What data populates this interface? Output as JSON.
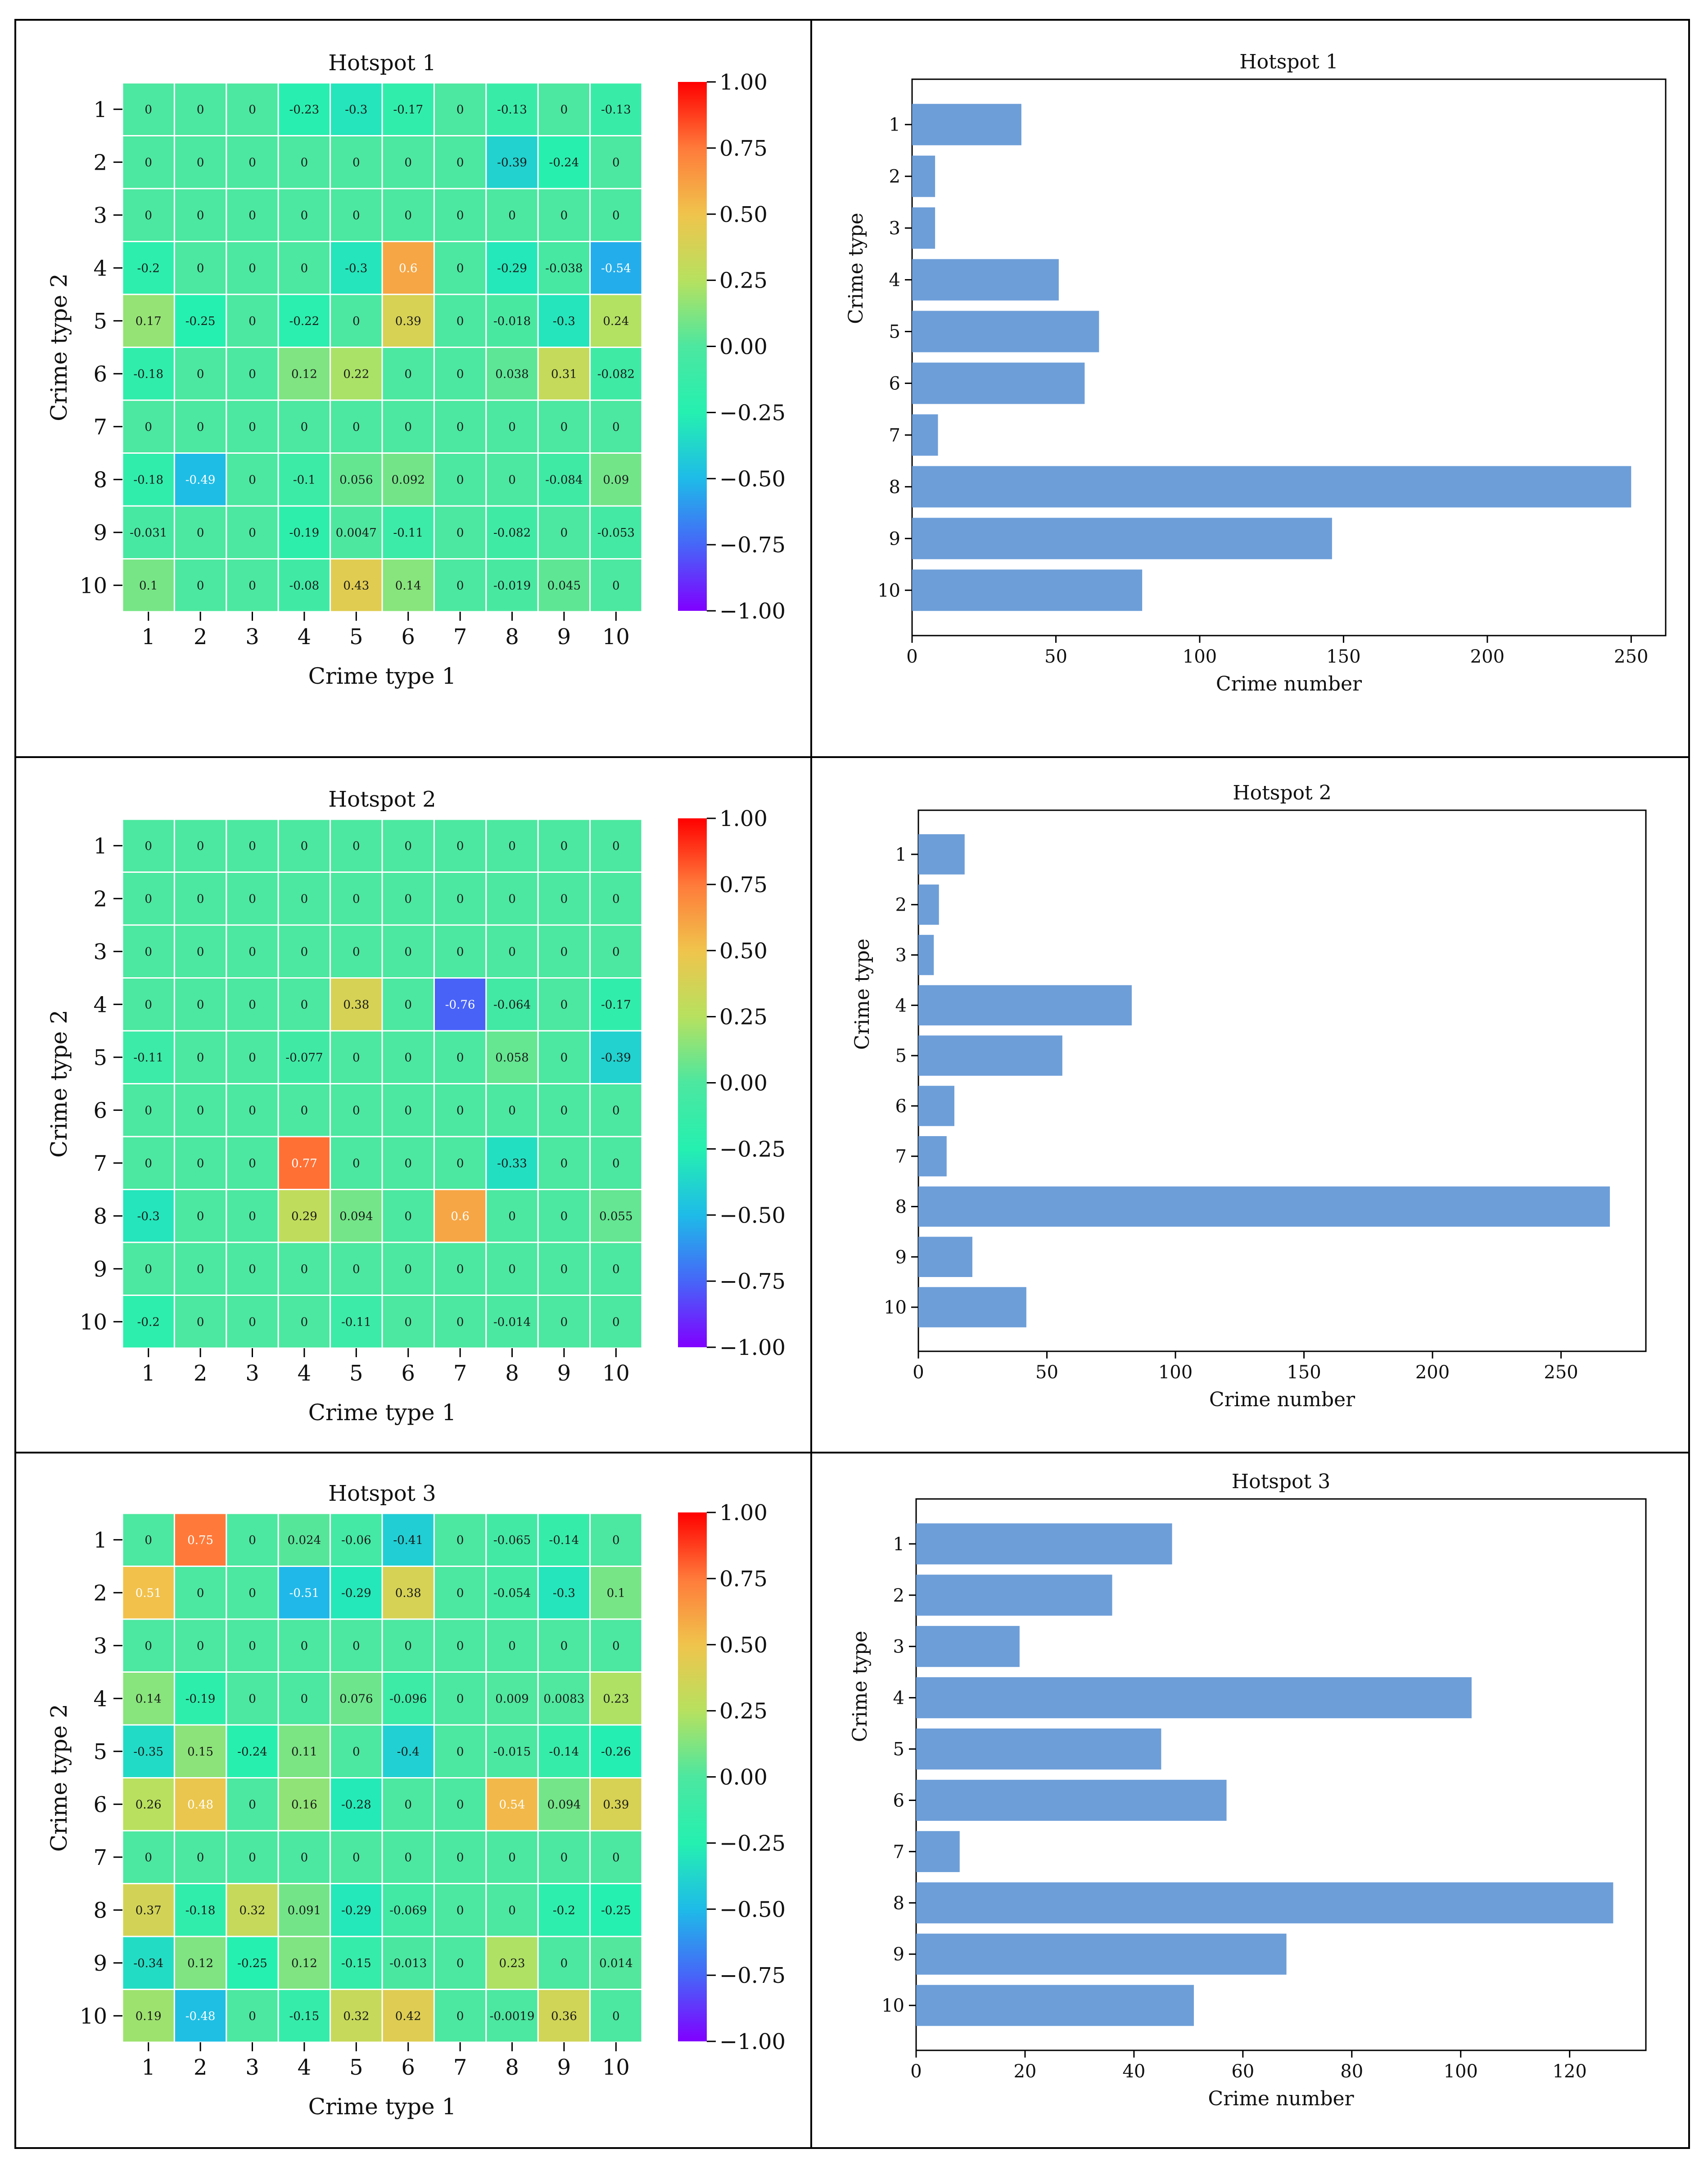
{
  "colors": {
    "bar": "#6d9ed8",
    "grid_line": "#ffffff",
    "frame": "#000000",
    "colorscale": [
      "#8000ff",
      "#4666f8",
      "#1ebbe8",
      "#25f0b0",
      "#4ce7a0",
      "#b7e15f",
      "#f0c44c",
      "#ff7a3a",
      "#ff0000"
    ]
  },
  "chart_data": [
    {
      "type": "heatmap",
      "title": "Hotspot 1",
      "xlabel": "Crime type 1",
      "ylabel": "Crime type 2",
      "x_ticks": [
        "1",
        "2",
        "3",
        "4",
        "5",
        "6",
        "7",
        "8",
        "9",
        "10"
      ],
      "y_ticks": [
        "1",
        "2",
        "3",
        "4",
        "5",
        "6",
        "7",
        "8",
        "9",
        "10"
      ],
      "value_range": [
        -1,
        1
      ],
      "colorbar_ticks": [
        "1.00",
        "0.75",
        "0.50",
        "0.25",
        "0.00",
        "−0.25",
        "−0.50",
        "−0.75",
        "−1.00"
      ],
      "cell_labels": [
        [
          "0",
          "0",
          "0",
          "-0.23",
          "-0.3",
          "-0.17",
          "0",
          "-0.13",
          "0",
          "-0.13"
        ],
        [
          "0",
          "0",
          "0",
          "0",
          "0",
          "0",
          "0",
          "-0.39",
          "-0.24",
          "0"
        ],
        [
          "0",
          "0",
          "0",
          "0",
          "0",
          "0",
          "0",
          "0",
          "0",
          "0"
        ],
        [
          "-0.2",
          "0",
          "0",
          "0",
          "-0.3",
          "0.6",
          "0",
          "-0.29",
          "-0.038",
          "-0.54"
        ],
        [
          "0.17",
          "-0.25",
          "0",
          "-0.22",
          "0",
          "0.39",
          "0",
          "-0.018",
          "-0.3",
          "0.24"
        ],
        [
          "-0.18",
          "0",
          "0",
          "0.12",
          "0.22",
          "0",
          "0",
          "0.038",
          "0.31",
          "-0.082"
        ],
        [
          "0",
          "0",
          "0",
          "0",
          "0",
          "0",
          "0",
          "0",
          "0",
          "0"
        ],
        [
          "-0.18",
          "-0.49",
          "0",
          "-0.1",
          "0.056",
          "0.092",
          "0",
          "0",
          "-0.084",
          "0.09"
        ],
        [
          "-0.031",
          "0",
          "0",
          "-0.19",
          "0.0047",
          "-0.11",
          "0",
          "-0.082",
          "0",
          "-0.053"
        ],
        [
          "0.1",
          "0",
          "0",
          "-0.08",
          "0.43",
          "0.14",
          "0",
          "-0.019",
          "0.045",
          "0"
        ]
      ]
    },
    {
      "type": "bar",
      "orientation": "horizontal",
      "title": "Hotspot 1",
      "xlabel": "Crime number",
      "ylabel": "Crime type",
      "categories": [
        "1",
        "2",
        "3",
        "4",
        "5",
        "6",
        "7",
        "8",
        "9",
        "10"
      ],
      "values": [
        38,
        8,
        8,
        51,
        65,
        60,
        9,
        250,
        146,
        80
      ],
      "xlim": [
        0,
        262
      ],
      "x_ticks": [
        0,
        50,
        100,
        150,
        200,
        250
      ]
    },
    {
      "type": "heatmap",
      "title": "Hotspot 2",
      "xlabel": "Crime type 1",
      "ylabel": "Crime type 2",
      "x_ticks": [
        "1",
        "2",
        "3",
        "4",
        "5",
        "6",
        "7",
        "8",
        "9",
        "10"
      ],
      "y_ticks": [
        "1",
        "2",
        "3",
        "4",
        "5",
        "6",
        "7",
        "8",
        "9",
        "10"
      ],
      "value_range": [
        -1,
        1
      ],
      "colorbar_ticks": [
        "1.00",
        "0.75",
        "0.50",
        "0.25",
        "0.00",
        "−0.25",
        "−0.50",
        "−0.75",
        "−1.00"
      ],
      "cell_labels": [
        [
          "0",
          "0",
          "0",
          "0",
          "0",
          "0",
          "0",
          "0",
          "0",
          "0"
        ],
        [
          "0",
          "0",
          "0",
          "0",
          "0",
          "0",
          "0",
          "0",
          "0",
          "0"
        ],
        [
          "0",
          "0",
          "0",
          "0",
          "0",
          "0",
          "0",
          "0",
          "0",
          "0"
        ],
        [
          "0",
          "0",
          "0",
          "0",
          "0.38",
          "0",
          "-0.76",
          "-0.064",
          "0",
          "-0.17"
        ],
        [
          "-0.11",
          "0",
          "0",
          "-0.077",
          "0",
          "0",
          "0",
          "0.058",
          "0",
          "-0.39"
        ],
        [
          "0",
          "0",
          "0",
          "0",
          "0",
          "0",
          "0",
          "0",
          "0",
          "0"
        ],
        [
          "0",
          "0",
          "0",
          "0.77",
          "0",
          "0",
          "0",
          "-0.33",
          "0",
          "0"
        ],
        [
          "-0.3",
          "0",
          "0",
          "0.29",
          "0.094",
          "0",
          "0.6",
          "0",
          "0",
          "0.055"
        ],
        [
          "0",
          "0",
          "0",
          "0",
          "0",
          "0",
          "0",
          "0",
          "0",
          "0"
        ],
        [
          "-0.2",
          "0",
          "0",
          "0",
          "-0.11",
          "0",
          "0",
          "-0.014",
          "0",
          "0"
        ]
      ]
    },
    {
      "type": "bar",
      "orientation": "horizontal",
      "title": "Hotspot 2",
      "xlabel": "Crime number",
      "ylabel": "Crime type",
      "categories": [
        "1",
        "2",
        "3",
        "4",
        "5",
        "6",
        "7",
        "8",
        "9",
        "10"
      ],
      "values": [
        18,
        8,
        6,
        83,
        56,
        14,
        11,
        269,
        21,
        42
      ],
      "xlim": [
        0,
        283
      ],
      "x_ticks": [
        0,
        50,
        100,
        150,
        200,
        250
      ]
    },
    {
      "type": "heatmap",
      "title": "Hotspot 3",
      "xlabel": "Crime type 1",
      "ylabel": "Crime type 2",
      "x_ticks": [
        "1",
        "2",
        "3",
        "4",
        "5",
        "6",
        "7",
        "8",
        "9",
        "10"
      ],
      "y_ticks": [
        "1",
        "2",
        "3",
        "4",
        "5",
        "6",
        "7",
        "8",
        "9",
        "10"
      ],
      "value_range": [
        -1,
        1
      ],
      "colorbar_ticks": [
        "1.00",
        "0.75",
        "0.50",
        "0.25",
        "0.00",
        "−0.25",
        "−0.50",
        "−0.75",
        "−1.00"
      ],
      "cell_labels": [
        [
          "0",
          "0.75",
          "0",
          "0.024",
          "-0.06",
          "-0.41",
          "0",
          "-0.065",
          "-0.14",
          "0"
        ],
        [
          "0.51",
          "0",
          "0",
          "-0.51",
          "-0.29",
          "0.38",
          "0",
          "-0.054",
          "-0.3",
          "0.1"
        ],
        [
          "0",
          "0",
          "0",
          "0",
          "0",
          "0",
          "0",
          "0",
          "0",
          "0"
        ],
        [
          "0.14",
          "-0.19",
          "0",
          "0",
          "0.076",
          "-0.096",
          "0",
          "0.009",
          "0.0083",
          "0.23"
        ],
        [
          "-0.35",
          "0.15",
          "-0.24",
          "0.11",
          "0",
          "-0.4",
          "0",
          "-0.015",
          "-0.14",
          "-0.26"
        ],
        [
          "0.26",
          "0.48",
          "0",
          "0.16",
          "-0.28",
          "0",
          "0",
          "0.54",
          "0.094",
          "0.39"
        ],
        [
          "0",
          "0",
          "0",
          "0",
          "0",
          "0",
          "0",
          "0",
          "0",
          "0"
        ],
        [
          "0.37",
          "-0.18",
          "0.32",
          "0.091",
          "-0.29",
          "-0.069",
          "0",
          "0",
          "-0.2",
          "-0.25"
        ],
        [
          "-0.34",
          "0.12",
          "-0.25",
          "0.12",
          "-0.15",
          "-0.013",
          "0",
          "0.23",
          "0",
          "0.014"
        ],
        [
          "0.19",
          "-0.48",
          "0",
          "-0.15",
          "0.32",
          "0.42",
          "0",
          "-0.0019",
          "0.36",
          "0"
        ]
      ]
    },
    {
      "type": "bar",
      "orientation": "horizontal",
      "title": "Hotspot 3",
      "xlabel": "Crime number",
      "ylabel": "Crime type",
      "categories": [
        "1",
        "2",
        "3",
        "4",
        "5",
        "6",
        "7",
        "8",
        "9",
        "10"
      ],
      "values": [
        47,
        36,
        19,
        102,
        45,
        57,
        8,
        128,
        68,
        51
      ],
      "xlim": [
        0,
        134
      ],
      "x_ticks": [
        0,
        20,
        40,
        60,
        80,
        100,
        120
      ]
    }
  ]
}
